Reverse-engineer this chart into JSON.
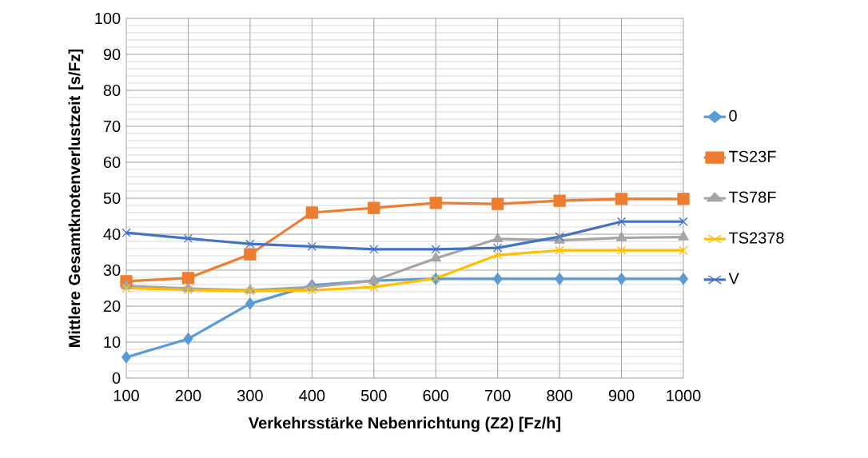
{
  "chart_data": {
    "type": "line",
    "xlabel": "Verkehrsstärke Nebenrichtung (Z2) [Fz/h]",
    "ylabel": "Mittlere Gesamtknotenverlustzeit [s/Fz]",
    "categories": [
      "100",
      "200",
      "300",
      "400",
      "500",
      "600",
      "700",
      "800",
      "900",
      "1000"
    ],
    "series": [
      {
        "name": "0",
        "color": "#5b9bd5",
        "marker": "diamond",
        "values": [
          5.8,
          10.9,
          20.7,
          25.8,
          27.1,
          27.6,
          27.6,
          27.6,
          27.6,
          27.6
        ]
      },
      {
        "name": "TS23F",
        "color": "#ed7d31",
        "marker": "square",
        "values": [
          26.9,
          27.8,
          34.4,
          46.0,
          47.3,
          48.7,
          48.4,
          49.3,
          49.8,
          49.8
        ]
      },
      {
        "name": "TS78F",
        "color": "#a5a5a5",
        "marker": "triangle",
        "values": [
          25.6,
          24.9,
          24.4,
          25.3,
          27.1,
          33.3,
          38.7,
          38.3,
          39.0,
          39.2
        ]
      },
      {
        "name": "TS2378",
        "color": "#ffc000",
        "marker": "cross",
        "values": [
          25.0,
          24.5,
          24.2,
          24.4,
          25.3,
          27.7,
          34.2,
          35.5,
          35.5,
          35.5
        ]
      },
      {
        "name": "V",
        "color": "#4472c4",
        "marker": "cross",
        "values": [
          40.4,
          38.8,
          37.3,
          36.6,
          35.8,
          35.8,
          36.2,
          39.3,
          43.5,
          43.5
        ]
      }
    ],
    "ylim": [
      0,
      100
    ],
    "yticks": [
      0,
      10,
      20,
      30,
      40,
      50,
      60,
      70,
      80,
      90,
      100
    ],
    "grid": true,
    "legend": "right",
    "line_style": "solid"
  }
}
